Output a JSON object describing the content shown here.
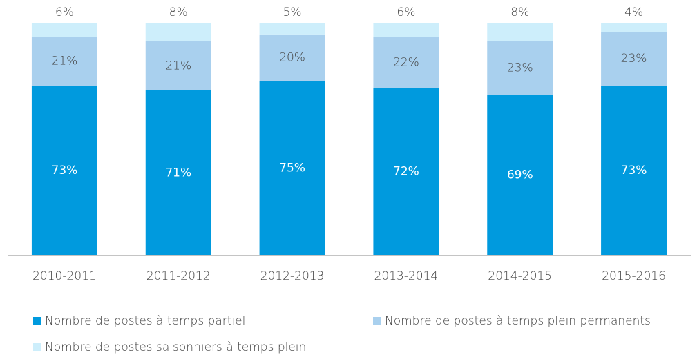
{
  "chart_data": {
    "type": "stacked_bar",
    "categories": [
      "2010-2011",
      "2011-2012",
      "2012-2013",
      "2013-2014",
      "2014-2015",
      "2015-2016"
    ],
    "ylim": [
      0,
      100
    ],
    "legend": "bottom",
    "series": [
      {
        "name": "Nombre de postes à temps partiel",
        "color": "#009ade",
        "values": [
          73,
          71,
          75,
          72,
          69,
          73
        ],
        "value_labels": [
          "73%",
          "71%",
          "75%",
          "72%",
          "69%",
          "73%"
        ]
      },
      {
        "name": "Nombre de postes à temps plein permanents",
        "color": "#a9d0ee",
        "values": [
          21,
          21,
          20,
          22,
          23,
          23
        ],
        "value_labels": [
          "21%",
          "21%",
          "20%",
          "22%",
          "23%",
          "23%"
        ]
      },
      {
        "name": "Nombre de postes saisonniers à temps plein",
        "color": "#cdeefb",
        "values": [
          6,
          8,
          5,
          6,
          8,
          4
        ],
        "value_labels": [
          "6%",
          "8%",
          "5%",
          "6%",
          "8%",
          "4%"
        ]
      }
    ]
  }
}
